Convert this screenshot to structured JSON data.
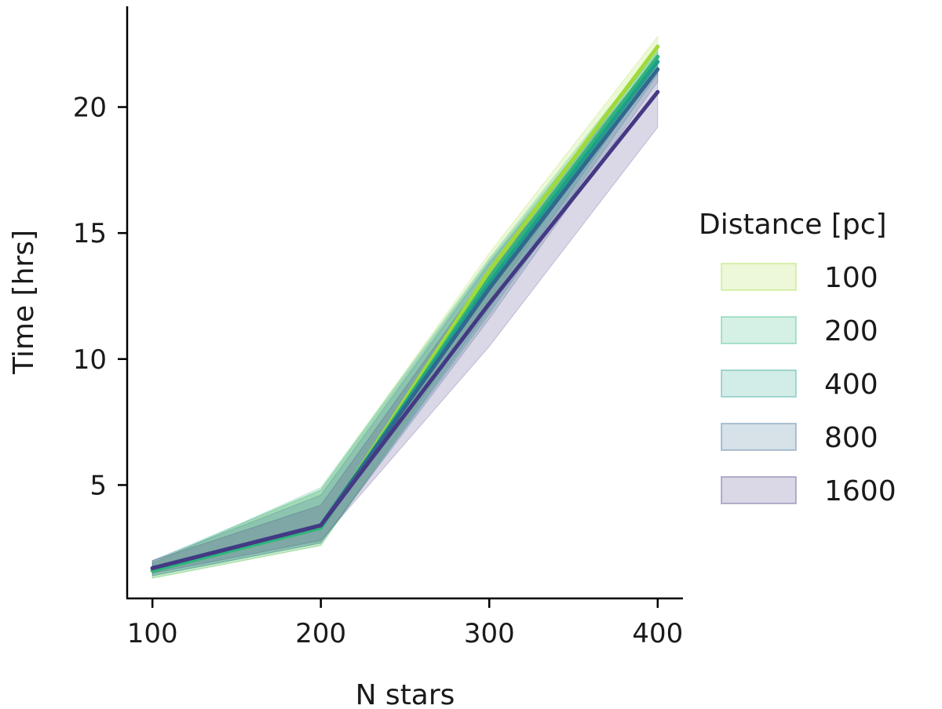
{
  "chart_data": {
    "type": "line",
    "xlabel": "N stars",
    "ylabel": "Time [hrs]",
    "x": [
      100,
      200,
      300,
      400
    ],
    "xlim": [
      85,
      415
    ],
    "ylim": [
      0.5,
      24
    ],
    "xticks": [
      100,
      200,
      300,
      400
    ],
    "xtick_labels": [
      "100",
      "200",
      "300",
      "400"
    ],
    "yticks": [
      5,
      10,
      15,
      20
    ],
    "ytick_labels": [
      "5",
      "10",
      "15",
      "20"
    ],
    "grid": false,
    "legend": {
      "title": "Distance [pc]",
      "placement": "outside-right",
      "entries": [
        "100",
        "200",
        "400",
        "800",
        "1600"
      ]
    },
    "series": [
      {
        "name": "100",
        "color": "#a0da39",
        "values": [
          1.6,
          3.3,
          13.5,
          22.4
        ],
        "lower": [
          1.3,
          2.6,
          12.3,
          22.0
        ],
        "upper": [
          1.9,
          4.8,
          14.2,
          22.8
        ]
      },
      {
        "name": "200",
        "color": "#2fb47c",
        "values": [
          1.6,
          3.3,
          13.2,
          22.0
        ],
        "lower": [
          1.3,
          2.6,
          12.0,
          21.6
        ],
        "upper": [
          1.9,
          4.9,
          14.0,
          22.4
        ]
      },
      {
        "name": "400",
        "color": "#1f9e89",
        "values": [
          1.7,
          3.4,
          13.0,
          21.8
        ],
        "lower": [
          1.4,
          2.7,
          11.8,
          21.3
        ],
        "upper": [
          2.0,
          4.8,
          13.9,
          22.2
        ]
      },
      {
        "name": "800",
        "color": "#31688e",
        "values": [
          1.7,
          3.4,
          12.8,
          21.5
        ],
        "lower": [
          1.4,
          2.7,
          11.6,
          21.0
        ],
        "upper": [
          2.0,
          4.6,
          13.8,
          22.0
        ]
      },
      {
        "name": "1600",
        "color": "#443983",
        "values": [
          1.7,
          3.4,
          12.2,
          20.6
        ],
        "lower": [
          1.5,
          2.8,
          10.5,
          19.2
        ],
        "upper": [
          2.0,
          4.2,
          13.5,
          21.6
        ]
      }
    ]
  }
}
